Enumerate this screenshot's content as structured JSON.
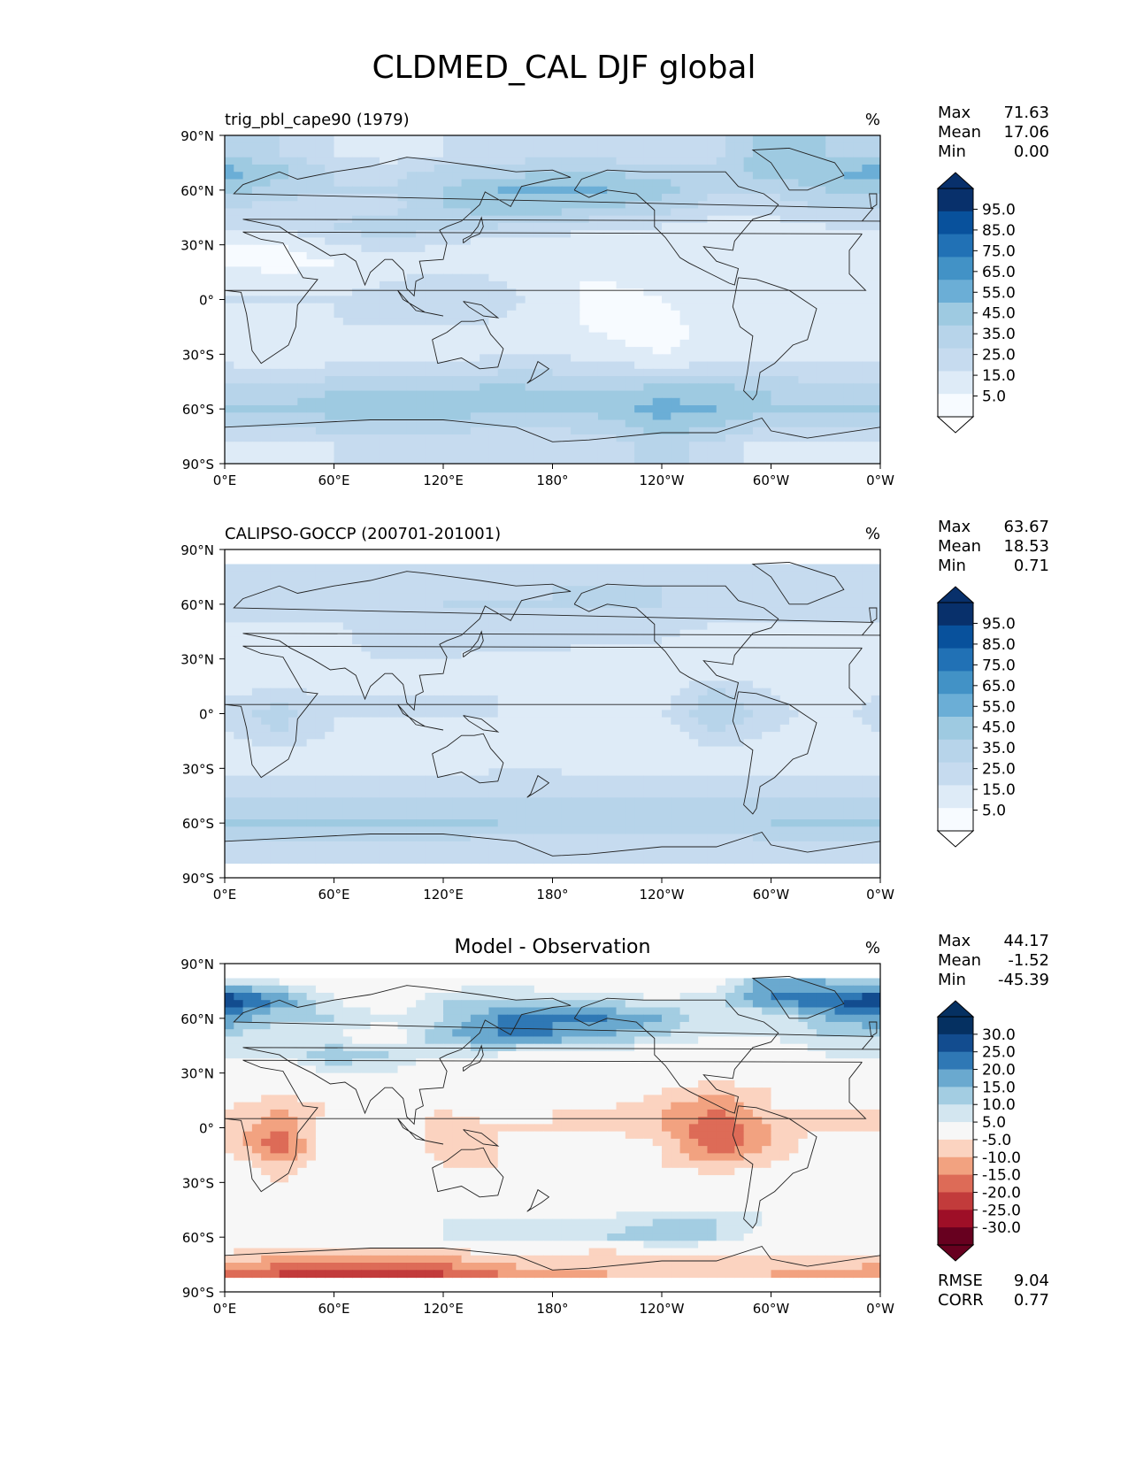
{
  "page": {
    "title": "CLDMED_CAL DJF global"
  },
  "axis_text": {
    "lat_ticks": [
      "90°N",
      "60°N",
      "30°N",
      "0°",
      "30°S",
      "60°S",
      "90°S"
    ],
    "lon_ticks": [
      "0°E",
      "60°E",
      "120°E",
      "180°",
      "120°W",
      "60°W",
      "0°W"
    ]
  },
  "colormaps": {
    "blues": [
      "#f7fbff",
      "#deebf7",
      "#c6dbef",
      "#b7d4ea",
      "#9ecae1",
      "#6baed6",
      "#4292c6",
      "#2171b5",
      "#08519c",
      "#08306b"
    ],
    "rdbu": [
      "#67001f",
      "#9e0f27",
      "#c23b3b",
      "#dd6b57",
      "#f2a280",
      "#fbd3c0",
      "#f7f7f7",
      "#d3e6f0",
      "#a3cde2",
      "#6aa9cf",
      "#2f78b5",
      "#124c8f",
      "#053061"
    ]
  },
  "chart_data": [
    {
      "type": "heatmap",
      "title": "trig_pbl_cape90 (1979)",
      "units": "%",
      "stats": {
        "Max": "71.63",
        "Mean": "17.06",
        "Min": "0.00"
      },
      "colorbar_labels": [
        "95.0",
        "85.0",
        "75.0",
        "65.0",
        "55.0",
        "45.0",
        "35.0",
        "25.0",
        "15.0",
        "5.0"
      ],
      "colormap": "blues",
      "field": {
        "lat": [
          80,
          70,
          60,
          50,
          40,
          30,
          20,
          10,
          0,
          -10,
          -20,
          -30,
          -40,
          -50,
          -60,
          -70,
          -80
        ],
        "lon": [
          0,
          30,
          60,
          90,
          120,
          150,
          180,
          210,
          240,
          270,
          300,
          330
        ],
        "values": [
          [
            35,
            30,
            20,
            15,
            20,
            25,
            25,
            25,
            20,
            25,
            50,
            40
          ],
          [
            55,
            45,
            30,
            25,
            35,
            35,
            40,
            40,
            35,
            35,
            45,
            50
          ],
          [
            45,
            35,
            30,
            30,
            40,
            50,
            50,
            50,
            45,
            30,
            30,
            40
          ],
          [
            30,
            25,
            25,
            25,
            40,
            45,
            45,
            40,
            35,
            25,
            25,
            30
          ],
          [
            20,
            20,
            30,
            40,
            30,
            30,
            25,
            20,
            20,
            15,
            15,
            20
          ],
          [
            10,
            10,
            20,
            25,
            20,
            15,
            15,
            15,
            15,
            10,
            10,
            10
          ],
          [
            10,
            5,
            10,
            10,
            15,
            15,
            10,
            10,
            10,
            10,
            10,
            10
          ],
          [
            15,
            15,
            15,
            20,
            25,
            20,
            10,
            10,
            15,
            15,
            10,
            15
          ],
          [
            20,
            20,
            20,
            25,
            30,
            25,
            15,
            5,
            10,
            20,
            15,
            15
          ],
          [
            15,
            15,
            20,
            25,
            25,
            20,
            15,
            5,
            5,
            20,
            15,
            10
          ],
          [
            10,
            10,
            15,
            15,
            15,
            15,
            15,
            10,
            5,
            15,
            10,
            10
          ],
          [
            15,
            10,
            15,
            15,
            15,
            20,
            20,
            15,
            10,
            15,
            15,
            15
          ],
          [
            25,
            20,
            25,
            25,
            25,
            30,
            30,
            25,
            25,
            25,
            25,
            25
          ],
          [
            35,
            35,
            40,
            40,
            40,
            45,
            40,
            40,
            45,
            45,
            40,
            35
          ],
          [
            40,
            40,
            45,
            45,
            45,
            45,
            40,
            45,
            55,
            50,
            40,
            40
          ],
          [
            30,
            30,
            35,
            35,
            35,
            30,
            30,
            35,
            45,
            40,
            30,
            30
          ],
          [
            15,
            15,
            20,
            20,
            20,
            20,
            20,
            25,
            35,
            25,
            15,
            15
          ]
        ]
      }
    },
    {
      "type": "heatmap",
      "title": "CALIPSO-GOCCP (200701-201001)",
      "units": "%",
      "stats": {
        "Max": "63.67",
        "Mean": "18.53",
        "Min": "0.71"
      },
      "colorbar_labels": [
        "95.0",
        "85.0",
        "75.0",
        "65.0",
        "55.0",
        "45.0",
        "35.0",
        "25.0",
        "15.0",
        "5.0"
      ],
      "colormap": "blues",
      "field": {
        "lat": [
          80,
          70,
          60,
          50,
          40,
          30,
          20,
          10,
          0,
          -10,
          -20,
          -30,
          -40,
          -50,
          -60,
          -70,
          -80
        ],
        "lon": [
          0,
          30,
          60,
          90,
          120,
          150,
          180,
          210,
          240,
          270,
          300,
          330
        ],
        "values": [
          [
            25,
            25,
            20,
            20,
            20,
            20,
            25,
            25,
            25,
            25,
            30,
            25
          ],
          [
            25,
            25,
            25,
            25,
            25,
            25,
            30,
            30,
            30,
            25,
            25,
            25
          ],
          [
            25,
            25,
            20,
            25,
            30,
            30,
            30,
            30,
            30,
            25,
            25,
            25
          ],
          [
            20,
            20,
            20,
            25,
            25,
            25,
            25,
            25,
            25,
            20,
            20,
            20
          ],
          [
            15,
            15,
            15,
            30,
            25,
            25,
            25,
            20,
            20,
            15,
            15,
            15
          ],
          [
            10,
            10,
            15,
            20,
            20,
            15,
            15,
            15,
            15,
            10,
            10,
            10
          ],
          [
            10,
            10,
            10,
            15,
            15,
            15,
            10,
            10,
            15,
            20,
            15,
            10
          ],
          [
            20,
            25,
            20,
            20,
            20,
            20,
            15,
            10,
            15,
            35,
            20,
            15
          ],
          [
            25,
            35,
            20,
            20,
            20,
            20,
            15,
            10,
            20,
            40,
            25,
            15
          ],
          [
            20,
            30,
            20,
            15,
            15,
            15,
            15,
            10,
            10,
            30,
            20,
            10
          ],
          [
            15,
            20,
            15,
            15,
            15,
            15,
            15,
            10,
            10,
            20,
            15,
            10
          ],
          [
            15,
            15,
            15,
            15,
            15,
            20,
            20,
            15,
            15,
            15,
            15,
            15
          ],
          [
            25,
            25,
            25,
            25,
            25,
            25,
            25,
            25,
            25,
            25,
            25,
            25
          ],
          [
            35,
            35,
            35,
            35,
            35,
            35,
            35,
            35,
            35,
            35,
            35,
            35
          ],
          [
            40,
            40,
            40,
            40,
            40,
            40,
            35,
            35,
            35,
            35,
            40,
            40
          ],
          [
            30,
            30,
            30,
            30,
            30,
            25,
            25,
            25,
            25,
            25,
            30,
            30
          ],
          [
            25,
            25,
            25,
            25,
            25,
            25,
            25,
            25,
            25,
            25,
            25,
            25
          ]
        ]
      }
    },
    {
      "type": "heatmap",
      "title": "Model - Observation",
      "units": "%",
      "stats": {
        "Max": "44.17",
        "Mean": "-1.52",
        "Min": "-45.39"
      },
      "colorbar_labels": [
        "30.0",
        "25.0",
        "20.0",
        "15.0",
        "10.0",
        "5.0",
        "-5.0",
        "-10.0",
        "-15.0",
        "-20.0",
        "-25.0",
        "-30.0"
      ],
      "colormap": "rdbu",
      "metrics": {
        "RMSE": "9.04",
        "CORR": "0.77"
      },
      "field": {
        "lat": [
          80,
          70,
          60,
          50,
          40,
          30,
          20,
          10,
          0,
          -10,
          -20,
          -30,
          -40,
          -50,
          -60,
          -70,
          -80
        ],
        "lon": [
          0,
          30,
          60,
          90,
          120,
          150,
          180,
          210,
          240,
          270,
          300,
          330
        ],
        "values": [
          [
            10,
            5,
            0,
            -5,
            0,
            5,
            0,
            0,
            -5,
            0,
            20,
            15
          ],
          [
            30,
            20,
            5,
            0,
            10,
            10,
            10,
            10,
            5,
            10,
            20,
            25
          ],
          [
            20,
            10,
            10,
            5,
            10,
            20,
            20,
            20,
            15,
            5,
            5,
            15
          ],
          [
            10,
            5,
            5,
            0,
            15,
            20,
            20,
            15,
            10,
            5,
            5,
            10
          ],
          [
            5,
            5,
            15,
            10,
            5,
            5,
            0,
            0,
            0,
            0,
            0,
            5
          ],
          [
            0,
            0,
            5,
            5,
            -5,
            0,
            0,
            0,
            0,
            0,
            0,
            0
          ],
          [
            0,
            -5,
            0,
            -5,
            0,
            0,
            0,
            0,
            -5,
            -10,
            -5,
            0
          ],
          [
            -5,
            -10,
            -5,
            0,
            -5,
            0,
            -5,
            -5,
            -10,
            -15,
            -5,
            -5
          ],
          [
            -5,
            -15,
            0,
            5,
            -10,
            -5,
            -5,
            -5,
            -10,
            -20,
            -10,
            -5
          ],
          [
            -5,
            -20,
            0,
            5,
            -10,
            -5,
            0,
            0,
            -5,
            -20,
            -10,
            0
          ],
          [
            0,
            -10,
            0,
            0,
            -5,
            -5,
            0,
            0,
            -5,
            -10,
            -5,
            0
          ],
          [
            0,
            -5,
            0,
            0,
            -5,
            0,
            0,
            0,
            0,
            0,
            0,
            0
          ],
          [
            0,
            0,
            5,
            0,
            0,
            0,
            5,
            0,
            0,
            0,
            0,
            0
          ],
          [
            0,
            0,
            0,
            0,
            5,
            5,
            5,
            5,
            10,
            10,
            5,
            0
          ],
          [
            0,
            0,
            5,
            0,
            5,
            5,
            5,
            10,
            15,
            10,
            0,
            0
          ],
          [
            -5,
            -10,
            -10,
            -10,
            -10,
            -5,
            -5,
            -10,
            -5,
            -5,
            -5,
            -5
          ],
          [
            -15,
            -20,
            -25,
            -20,
            -20,
            -15,
            -10,
            -10,
            -5,
            -5,
            -10,
            -10
          ]
        ]
      }
    }
  ]
}
